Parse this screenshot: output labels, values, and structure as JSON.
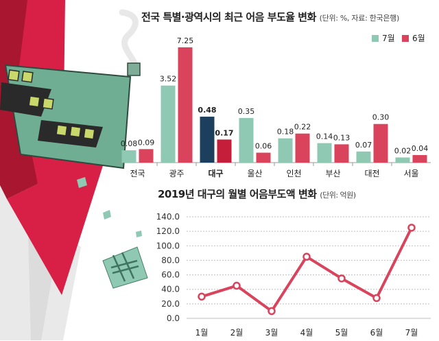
{
  "bar_chart": {
    "title": "전국 특별·광역시의 최근 어음 부도율 변화",
    "unit_note": "(단위: %, 자료: 한국은행)",
    "legend": [
      {
        "label": "7월",
        "color": "#8fc9b4"
      },
      {
        "label": "6월",
        "color": "#d9435c"
      }
    ],
    "highlight_color_july": "#1d3f5e",
    "highlight_color_june": "#c41e3a"
  },
  "line_chart": {
    "title": "2019년 대구의 월별 어음부도액 변화",
    "unit_note": "(단위: 억원)",
    "line_color": "#d9435c"
  },
  "chart_data": [
    {
      "type": "bar",
      "title": "전국 특별·광역시의 최근 어음 부도율 변화",
      "categories": [
        "전국",
        "광주",
        "대구",
        "울산",
        "인천",
        "부산",
        "대전",
        "서울"
      ],
      "highlight_category": "대구",
      "series": [
        {
          "name": "7월",
          "values": [
            0.08,
            3.52,
            0.48,
            0.35,
            0.18,
            0.14,
            0.07,
            0.02
          ],
          "labels": [
            "0.08",
            "3.52",
            "0.48",
            "0.35",
            "0.18",
            "0.14",
            "0.07",
            "0.02"
          ]
        },
        {
          "name": "6월",
          "values": [
            0.09,
            7.25,
            0.17,
            0.06,
            0.22,
            0.13,
            0.3,
            0.04
          ],
          "labels": [
            "0.09",
            "7.25",
            "0.17",
            "0.06",
            "0.22",
            "0.13",
            "0.30",
            "0.04"
          ]
        }
      ],
      "scale": "broken (values not drawn to linear scale)",
      "legend_position": "top-right"
    },
    {
      "type": "line",
      "title": "2019년 대구의 월별 어음부도액 변화",
      "ylabel": "억원",
      "x": [
        "1월",
        "2월",
        "3월",
        "4월",
        "5월",
        "6월",
        "7월"
      ],
      "values": [
        30,
        45,
        10,
        85,
        55,
        28,
        125
      ],
      "yticks": [
        "0.0",
        "20.0",
        "40.0",
        "60.0",
        "80.0",
        "100.0",
        "120.0",
        "140.0"
      ],
      "ylim": [
        0,
        140
      ],
      "grid": true
    }
  ]
}
